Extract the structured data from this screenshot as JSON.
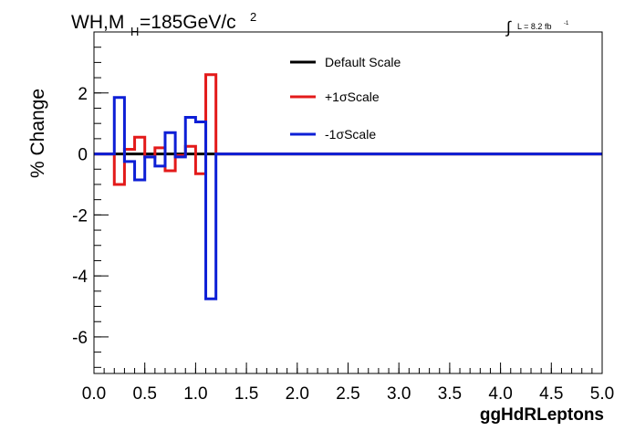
{
  "chart_data": {
    "type": "line",
    "title_main": "WH,M",
    "title_sub": "H",
    "title_rest": "=185GeV/c",
    "title_sup": "2",
    "lumi_label": "L = 8.2 fb",
    "lumi_sup": "-1",
    "xlabel": "ggHdRLeptons",
    "ylabel": "% Change",
    "xlim": [
      0,
      5.0
    ],
    "ylim": [
      -7.2,
      4.0
    ],
    "xticks": [
      0.0,
      0.5,
      1.0,
      1.5,
      2.0,
      2.5,
      3.0,
      3.5,
      4.0,
      4.5,
      5.0
    ],
    "xtick_labels": [
      "0.0",
      "0.5",
      "1.0",
      "1.5",
      "2.0",
      "2.5",
      "3.0",
      "3.5",
      "4.0",
      "4.5",
      "5.0"
    ],
    "yticks": [
      -6,
      -4,
      -2,
      0,
      2
    ],
    "ytick_labels": [
      "-6",
      "-4",
      "-2",
      "0",
      "2"
    ],
    "bin_edges": [
      0,
      0.1,
      0.2,
      0.3,
      0.4,
      0.5,
      0.6,
      0.7,
      0.8,
      0.9,
      1.0,
      1.1,
      1.2,
      5.0
    ],
    "series": [
      {
        "name": "Default Scale",
        "color": "#000000",
        "values": [
          0,
          0,
          0,
          0,
          0,
          0,
          0,
          0,
          0,
          0,
          0,
          0,
          0
        ]
      },
      {
        "name": "+1σScale",
        "color": "#e31a1a",
        "values": [
          0,
          0,
          -1.0,
          0.15,
          0.55,
          -0.1,
          0.2,
          -0.55,
          -0.05,
          0.25,
          -0.65,
          2.6,
          0
        ]
      },
      {
        "name": "-1σScale",
        "color": "#0d1fd6",
        "values": [
          0,
          0,
          1.85,
          -0.25,
          -0.85,
          -0.1,
          -0.4,
          0.7,
          -0.1,
          1.2,
          1.05,
          -4.75,
          0
        ]
      }
    ],
    "legend_position": "top-center",
    "grid": false
  }
}
